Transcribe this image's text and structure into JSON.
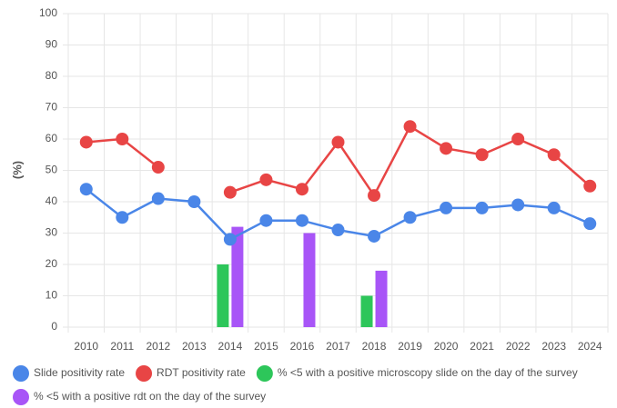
{
  "chart_data": {
    "type": "combo",
    "y_label": "(%)",
    "categories": [
      "2010",
      "2011",
      "2012",
      "2013",
      "2014",
      "2015",
      "2016",
      "2017",
      "2018",
      "2019",
      "2020",
      "2021",
      "2022",
      "2023",
      "2024"
    ],
    "series": [
      {
        "name": "Slide positivity rate",
        "type": "line",
        "color": "#4a86e8",
        "values": [
          44,
          35,
          41,
          40,
          28,
          34,
          34,
          31,
          29,
          35,
          38,
          38,
          39,
          38,
          33
        ]
      },
      {
        "name": "RDT positivity rate",
        "type": "line",
        "color": "#e84545",
        "values": [
          59,
          60,
          51,
          null,
          43,
          47,
          44,
          59,
          42,
          64,
          57,
          55,
          60,
          55,
          45
        ]
      },
      {
        "name": "% <5 with a positive microscopy slide on the day of the survey",
        "type": "bar",
        "color": "#2dc65a",
        "values": [
          null,
          null,
          null,
          null,
          20,
          null,
          null,
          null,
          10,
          null,
          null,
          null,
          null,
          null,
          null
        ]
      },
      {
        "name": "% <5 with a positive rdt on the day of the survey",
        "type": "bar",
        "color": "#a855f7",
        "values": [
          null,
          null,
          null,
          null,
          32,
          null,
          30,
          null,
          18,
          null,
          null,
          null,
          null,
          null,
          null
        ]
      }
    ],
    "ylim": [
      0,
      100
    ],
    "yticks": [
      0,
      10,
      20,
      30,
      40,
      50,
      60,
      70,
      80,
      90,
      100
    ],
    "grid": true
  }
}
